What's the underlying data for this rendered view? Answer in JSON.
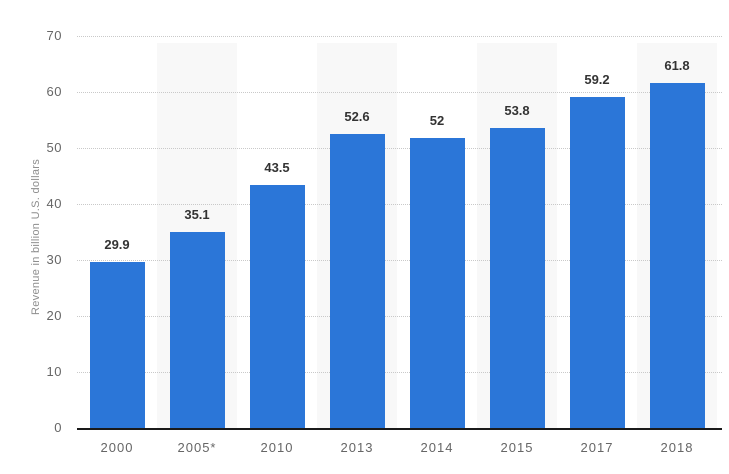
{
  "chart": {
    "y_axis_title": "Revenue in billion U.S. dollars"
  },
  "chart_data": {
    "type": "bar",
    "title": "",
    "categories": [
      "2000",
      "2005*",
      "2010",
      "2013",
      "2014",
      "2015",
      "2017",
      "2018"
    ],
    "values": [
      29.9,
      35.1,
      43.5,
      52.6,
      52,
      53.8,
      59.2,
      61.8
    ],
    "value_labels": [
      "29.9",
      "35.1",
      "43.5",
      "52.6",
      "52",
      "53.8",
      "59.2",
      "61.8"
    ],
    "xlabel": "",
    "ylabel": "Revenue in billion U.S. dollars",
    "ylim": [
      0,
      70
    ],
    "yticks": [
      0,
      10,
      20,
      30,
      40,
      50,
      60,
      70
    ],
    "grid": "horizontal dotted",
    "legend": "none",
    "bar_color": "#2b76d8",
    "stripe_color": "#f8f8f8",
    "axis_line_color": "#1a1a1a",
    "background_color": "#ffffff",
    "alternating_column_stripes": true
  }
}
